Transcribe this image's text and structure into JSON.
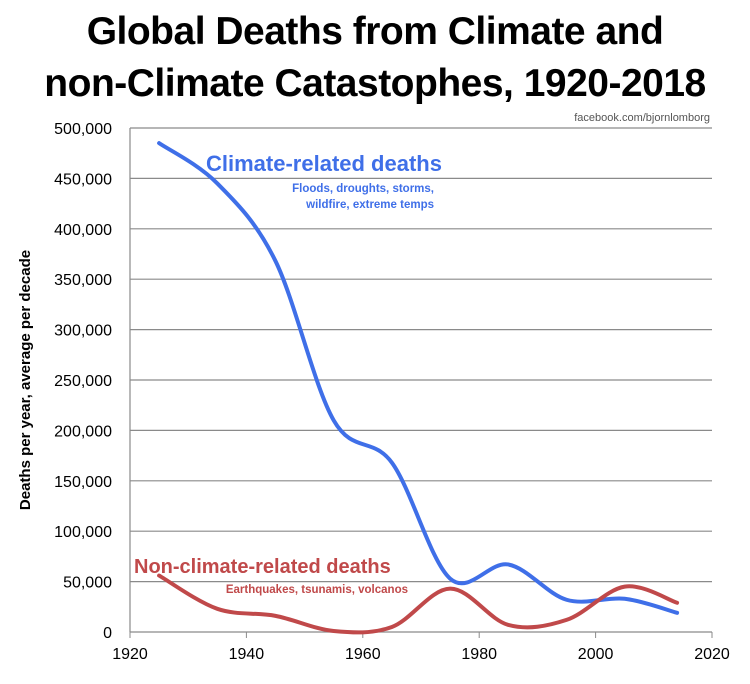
{
  "chart_data": {
    "type": "line",
    "title_line1": "Global Deaths from Climate and",
    "title_line2": "non-Climate Catastophes, 1920-2018",
    "source": "facebook.com/bjornlomborg",
    "ylabel": "Deaths per year, average per decade",
    "xlabel": "",
    "xlim": [
      1920,
      2020
    ],
    "ylim": [
      0,
      500000
    ],
    "xticks": [
      "1920",
      "1940",
      "1960",
      "1980",
      "2000",
      "2020"
    ],
    "xtick_values": [
      1920,
      1940,
      1960,
      1980,
      2000,
      2020
    ],
    "yticks": [
      "0",
      "50,000",
      "100,000",
      "150,000",
      "200,000",
      "250,000",
      "300,000",
      "350,000",
      "400,000",
      "450,000",
      "500,000"
    ],
    "ytick_values": [
      0,
      50000,
      100000,
      150000,
      200000,
      250000,
      300000,
      350000,
      400000,
      450000,
      500000
    ],
    "grid": true,
    "x": [
      1925,
      1935,
      1945,
      1955,
      1965,
      1975,
      1985,
      1995,
      2005,
      2014
    ],
    "series": [
      {
        "name": "Climate-related deaths",
        "subtitle_line1": "Floods, droughts, storms,",
        "subtitle_line2": "wildfire, extreme temps",
        "color": "#3f6fe8",
        "values": [
          485000,
          445000,
          368000,
          210000,
          168000,
          53000,
          67000,
          32000,
          33000,
          19000
        ]
      },
      {
        "name": "Non-climate-related deaths",
        "subtitle_line1": "Earthquakes, tsunamis, volcanos",
        "color": "#c0494a",
        "values": [
          56000,
          23000,
          16000,
          1000,
          5000,
          43000,
          7000,
          12000,
          45000,
          29000
        ]
      }
    ]
  }
}
